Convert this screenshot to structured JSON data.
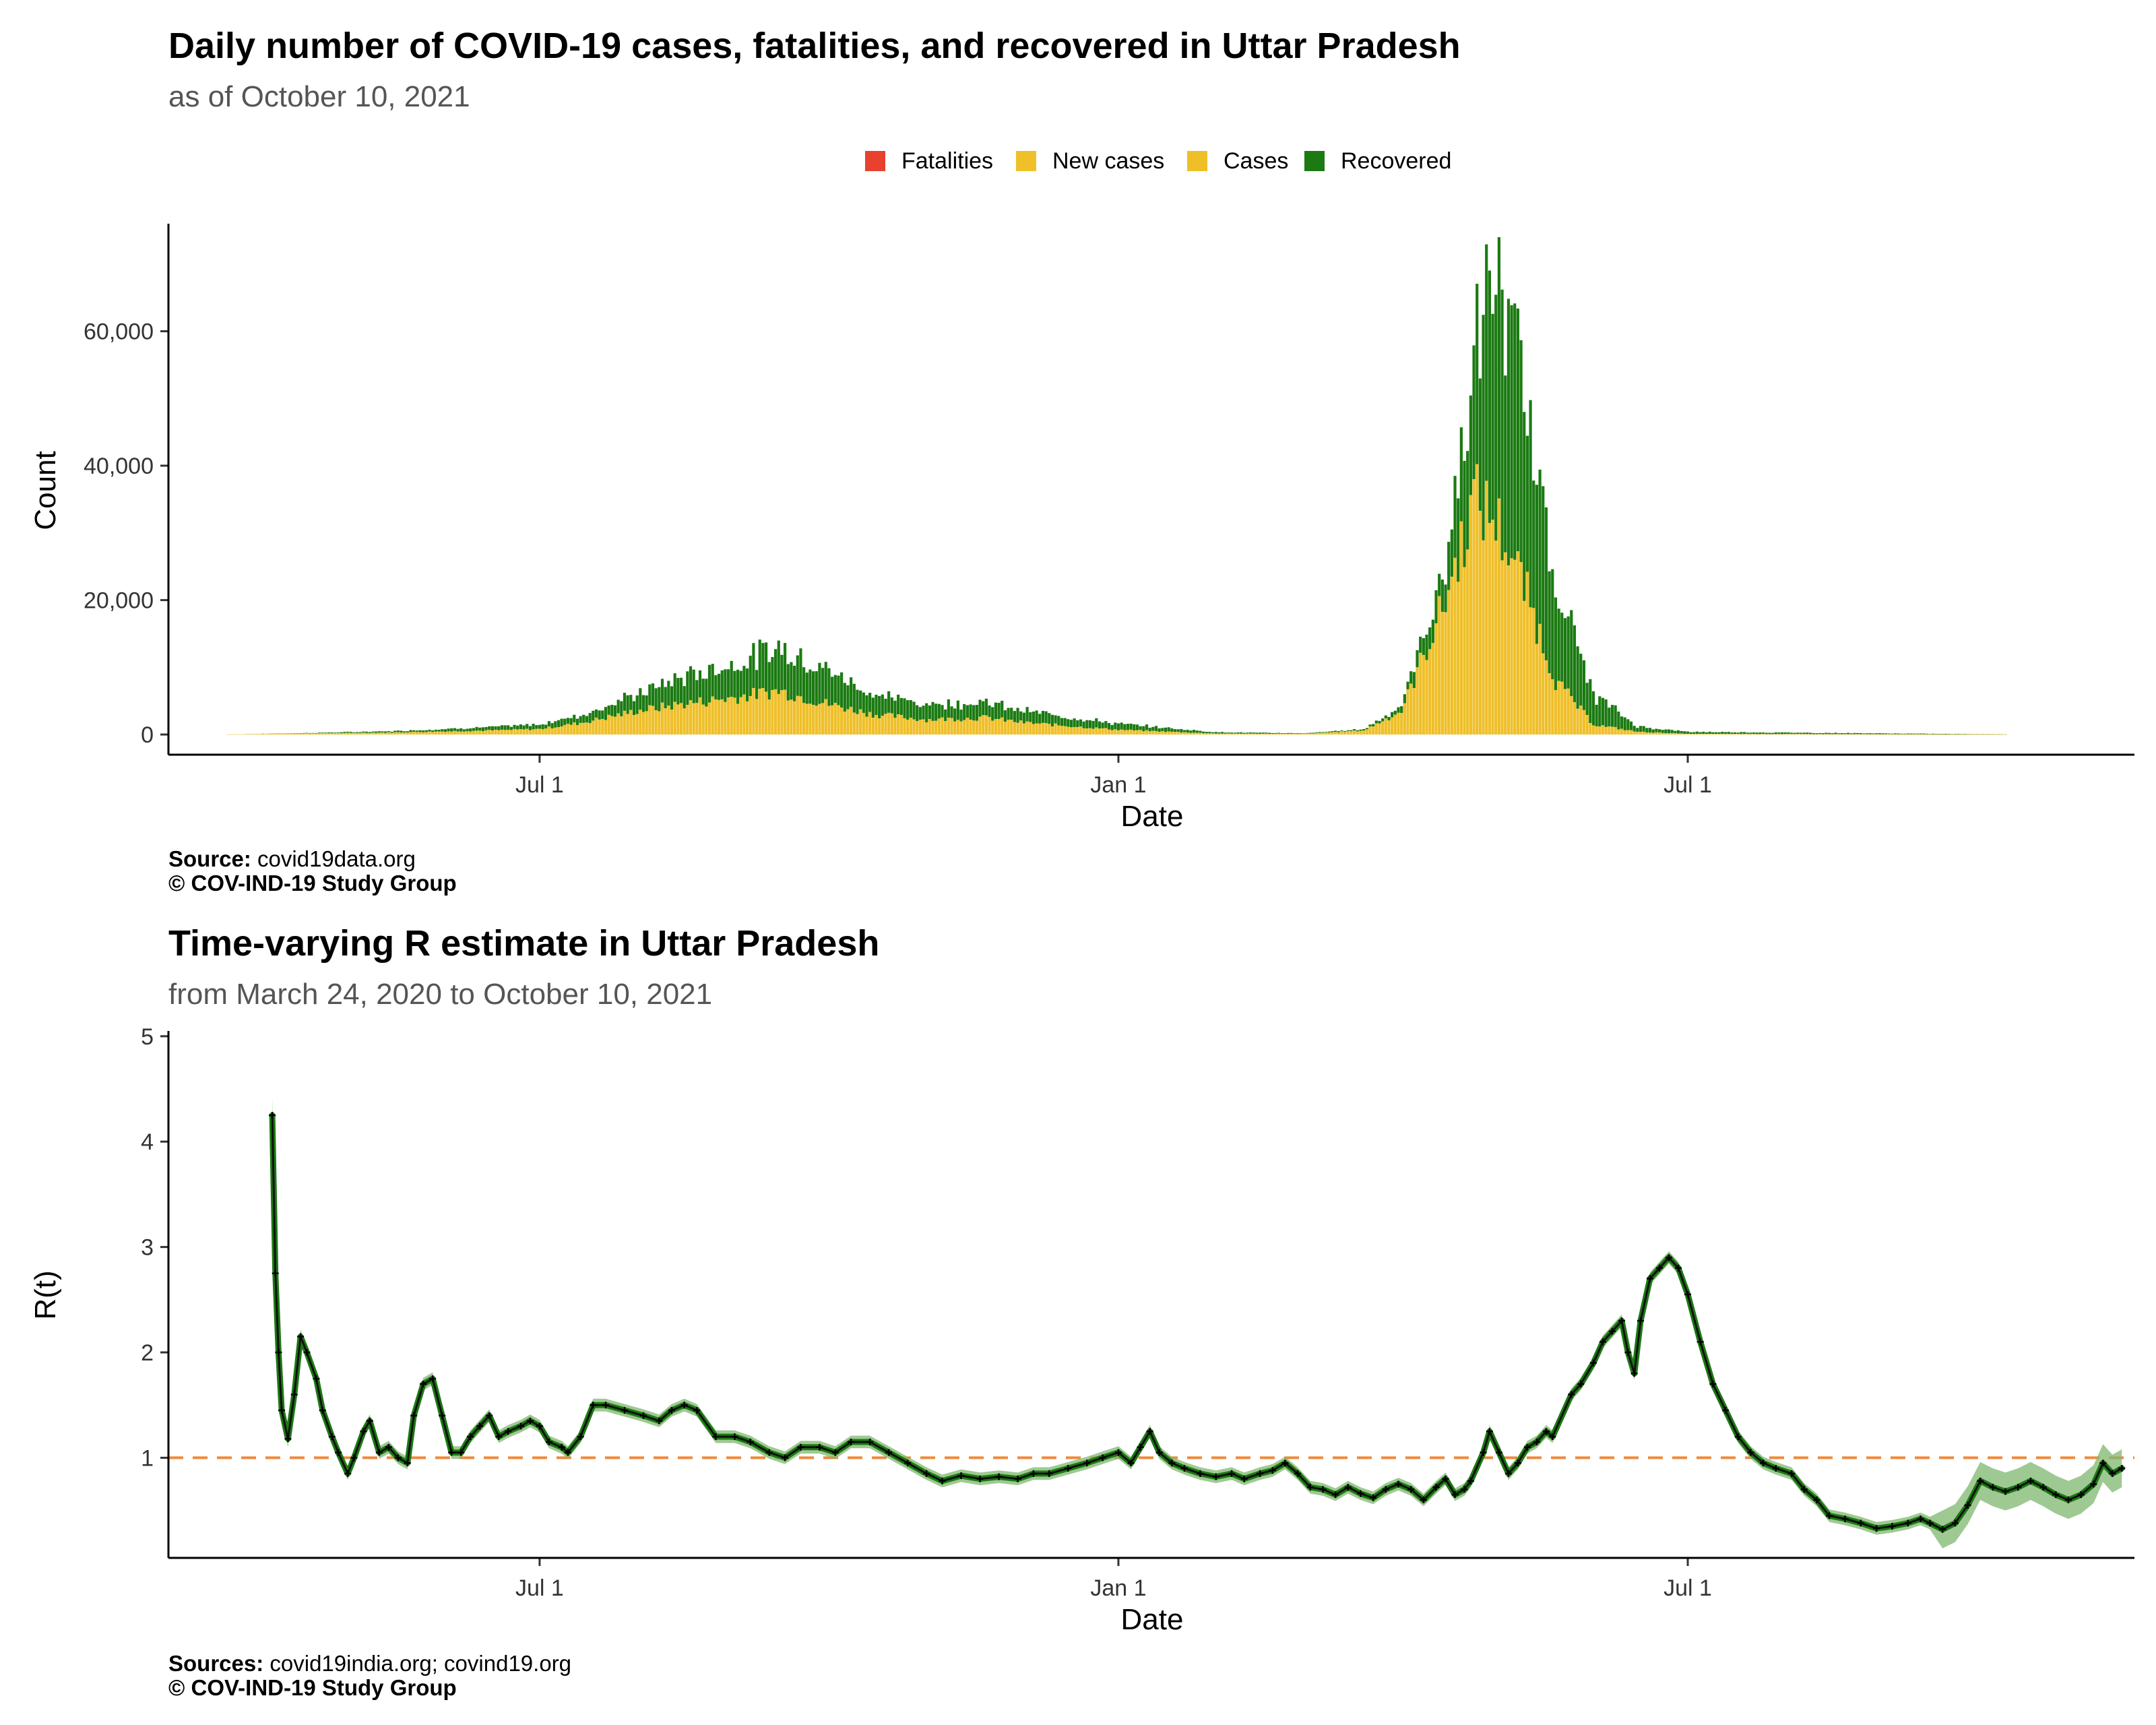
{
  "colors": {
    "fatalities": "#e8412e",
    "new_cases": "#f0c02a",
    "cases": "#efbf29",
    "recovered": "#1b7a12",
    "rt_line": "#1b7a12",
    "rt_band": "#7fb76f",
    "threshold": "#f08a3c",
    "subtitle": "#555555",
    "axis_text": "#333333"
  },
  "chart_data": [
    {
      "type": "bar",
      "title": "Daily number of COVID-19 cases, fatalities, and recovered in Uttar Pradesh",
      "subtitle": "as of October 10, 2021",
      "xlabel": "Date",
      "ylabel": "Count",
      "legend": {
        "placement": "top-right",
        "entries": [
          "Fatalities",
          "New cases",
          "Cases",
          "Recovered"
        ]
      },
      "x_tick_labels": [
        "Jul  1",
        "Jan  1",
        "Jul  1"
      ],
      "x_tick_dates": [
        "2020-07-01",
        "2021-01-01",
        "2021-07-01"
      ],
      "x_range": [
        "2020-03-05",
        "2021-11-20"
      ],
      "y_ticks": [
        0,
        20000,
        40000,
        60000
      ],
      "y_tick_labels": [
        "0",
        "20,000",
        "40,000",
        "60,000"
      ],
      "ylim": [
        -3000,
        76000
      ],
      "grid": false,
      "series_profile": [
        {
          "date": "2020-03-24",
          "cases": 20,
          "recovered": 0
        },
        {
          "date": "2020-04-15",
          "cases": 150,
          "recovered": 50
        },
        {
          "date": "2020-05-15",
          "cases": 300,
          "recovered": 200
        },
        {
          "date": "2020-06-15",
          "cases": 600,
          "recovered": 500
        },
        {
          "date": "2020-07-01",
          "cases": 800,
          "recovered": 700
        },
        {
          "date": "2020-07-15",
          "cases": 1800,
          "recovered": 1200
        },
        {
          "date": "2020-08-01",
          "cases": 3500,
          "recovered": 2500
        },
        {
          "date": "2020-08-15",
          "cases": 4500,
          "recovered": 4000
        },
        {
          "date": "2020-09-01",
          "cases": 5500,
          "recovered": 5000
        },
        {
          "date": "2020-09-15",
          "cases": 6500,
          "recovered": 6500
        },
        {
          "date": "2020-10-01",
          "cases": 4500,
          "recovered": 5000
        },
        {
          "date": "2020-10-15",
          "cases": 3000,
          "recovered": 3000
        },
        {
          "date": "2020-11-01",
          "cases": 2200,
          "recovered": 2300
        },
        {
          "date": "2020-11-20",
          "cases": 2500,
          "recovered": 2300
        },
        {
          "date": "2020-12-01",
          "cases": 1800,
          "recovered": 1800
        },
        {
          "date": "2021-01-01",
          "cases": 700,
          "recovered": 900
        },
        {
          "date": "2021-02-01",
          "cases": 150,
          "recovered": 200
        },
        {
          "date": "2021-03-01",
          "cases": 100,
          "recovered": 80
        },
        {
          "date": "2021-03-20",
          "cases": 600,
          "recovered": 200
        },
        {
          "date": "2021-04-01",
          "cases": 3500,
          "recovered": 800
        },
        {
          "date": "2021-04-15",
          "cases": 20000,
          "recovered": 5000
        },
        {
          "date": "2021-04-24",
          "cases": 35000,
          "recovered": 20000
        },
        {
          "date": "2021-05-01",
          "cases": 32000,
          "recovered": 38000
        },
        {
          "date": "2021-05-10",
          "cases": 22000,
          "recovered": 28000
        },
        {
          "date": "2021-05-20",
          "cases": 8000,
          "recovered": 15000
        },
        {
          "date": "2021-06-01",
          "cases": 1500,
          "recovered": 4500
        },
        {
          "date": "2021-06-15",
          "cases": 400,
          "recovered": 800
        },
        {
          "date": "2021-07-01",
          "cases": 100,
          "recovered": 300
        },
        {
          "date": "2021-10-10",
          "cases": 10,
          "recovered": 20
        }
      ]
    },
    {
      "type": "line",
      "title": "Time-varying R estimate in Uttar Pradesh",
      "subtitle": "from March 24, 2020 to October 10, 2021",
      "xlabel": "Date",
      "ylabel": "R(t)",
      "x_tick_labels": [
        "Jul  1",
        "Jan  1",
        "Jul  1"
      ],
      "x_tick_dates": [
        "2020-07-01",
        "2021-01-01",
        "2021-07-01"
      ],
      "x_range": [
        "2020-03-05",
        "2021-11-20"
      ],
      "y_ticks": [
        1,
        2,
        3,
        4,
        5
      ],
      "ylim": [
        0.05,
        5.05
      ],
      "threshold": 1,
      "grid": false,
      "points": [
        [
          "2020-04-07",
          4.25
        ],
        [
          "2020-04-08",
          2.75
        ],
        [
          "2020-04-09",
          2.0
        ],
        [
          "2020-04-10",
          1.45
        ],
        [
          "2020-04-12",
          1.18
        ],
        [
          "2020-04-14",
          1.6
        ],
        [
          "2020-04-16",
          2.15
        ],
        [
          "2020-04-18",
          2.0
        ],
        [
          "2020-04-21",
          1.75
        ],
        [
          "2020-04-23",
          1.45
        ],
        [
          "2020-04-26",
          1.2
        ],
        [
          "2020-04-28",
          1.05
        ],
        [
          "2020-05-01",
          0.85
        ],
        [
          "2020-05-03",
          1.0
        ],
        [
          "2020-05-06",
          1.25
        ],
        [
          "2020-05-08",
          1.35
        ],
        [
          "2020-05-11",
          1.05
        ],
        [
          "2020-05-14",
          1.1
        ],
        [
          "2020-05-17",
          1.0
        ],
        [
          "2020-05-20",
          0.95
        ],
        [
          "2020-05-22",
          1.4
        ],
        [
          "2020-05-25",
          1.7
        ],
        [
          "2020-05-28",
          1.75
        ],
        [
          "2020-05-31",
          1.4
        ],
        [
          "2020-06-03",
          1.05
        ],
        [
          "2020-06-06",
          1.05
        ],
        [
          "2020-06-09",
          1.2
        ],
        [
          "2020-06-12",
          1.3
        ],
        [
          "2020-06-15",
          1.4
        ],
        [
          "2020-06-18",
          1.2
        ],
        [
          "2020-06-21",
          1.25
        ],
        [
          "2020-06-25",
          1.3
        ],
        [
          "2020-06-28",
          1.35
        ],
        [
          "2020-07-01",
          1.3
        ],
        [
          "2020-07-04",
          1.15
        ],
        [
          "2020-07-08",
          1.1
        ],
        [
          "2020-07-10",
          1.05
        ],
        [
          "2020-07-14",
          1.2
        ],
        [
          "2020-07-18",
          1.5
        ],
        [
          "2020-07-22",
          1.5
        ],
        [
          "2020-07-28",
          1.45
        ],
        [
          "2020-08-03",
          1.4
        ],
        [
          "2020-08-08",
          1.35
        ],
        [
          "2020-08-12",
          1.45
        ],
        [
          "2020-08-16",
          1.5
        ],
        [
          "2020-08-20",
          1.45
        ],
        [
          "2020-08-26",
          1.2
        ],
        [
          "2020-09-01",
          1.2
        ],
        [
          "2020-09-06",
          1.15
        ],
        [
          "2020-09-12",
          1.05
        ],
        [
          "2020-09-17",
          1.0
        ],
        [
          "2020-09-22",
          1.1
        ],
        [
          "2020-09-28",
          1.1
        ],
        [
          "2020-10-03",
          1.05
        ],
        [
          "2020-10-08",
          1.15
        ],
        [
          "2020-10-14",
          1.15
        ],
        [
          "2020-10-20",
          1.05
        ],
        [
          "2020-10-26",
          0.95
        ],
        [
          "2020-11-01",
          0.85
        ],
        [
          "2020-11-06",
          0.78
        ],
        [
          "2020-11-12",
          0.83
        ],
        [
          "2020-11-18",
          0.8
        ],
        [
          "2020-11-24",
          0.82
        ],
        [
          "2020-11-30",
          0.8
        ],
        [
          "2020-12-05",
          0.85
        ],
        [
          "2020-12-10",
          0.85
        ],
        [
          "2020-12-16",
          0.9
        ],
        [
          "2020-12-22",
          0.95
        ],
        [
          "2020-12-27",
          1.0
        ],
        [
          "2021-01-01",
          1.05
        ],
        [
          "2021-01-05",
          0.95
        ],
        [
          "2021-01-08",
          1.1
        ],
        [
          "2021-01-11",
          1.25
        ],
        [
          "2021-01-14",
          1.05
        ],
        [
          "2021-01-18",
          0.95
        ],
        [
          "2021-01-22",
          0.9
        ],
        [
          "2021-01-27",
          0.85
        ],
        [
          "2021-02-01",
          0.82
        ],
        [
          "2021-02-06",
          0.85
        ],
        [
          "2021-02-10",
          0.8
        ],
        [
          "2021-02-15",
          0.85
        ],
        [
          "2021-02-19",
          0.88
        ],
        [
          "2021-02-23",
          0.95
        ],
        [
          "2021-02-27",
          0.85
        ],
        [
          "2021-03-03",
          0.72
        ],
        [
          "2021-03-07",
          0.7
        ],
        [
          "2021-03-11",
          0.65
        ],
        [
          "2021-03-15",
          0.72
        ],
        [
          "2021-03-19",
          0.66
        ],
        [
          "2021-03-23",
          0.62
        ],
        [
          "2021-03-27",
          0.7
        ],
        [
          "2021-03-31",
          0.75
        ],
        [
          "2021-04-04",
          0.7
        ],
        [
          "2021-04-08",
          0.6
        ],
        [
          "2021-04-12",
          0.72
        ],
        [
          "2021-04-15",
          0.8
        ],
        [
          "2021-04-18",
          0.65
        ],
        [
          "2021-04-21",
          0.7
        ],
        [
          "2021-04-23",
          0.78
        ],
        [
          "2021-04-27",
          1.05
        ],
        [
          "2021-04-29",
          1.25
        ],
        [
          "2021-05-02",
          1.05
        ],
        [
          "2021-05-05",
          0.85
        ],
        [
          "2021-05-08",
          0.95
        ],
        [
          "2021-05-11",
          1.1
        ],
        [
          "2021-05-14",
          1.15
        ],
        [
          "2021-05-17",
          1.25
        ],
        [
          "2021-05-19",
          1.2
        ],
        [
          "2021-05-25",
          1.6
        ],
        [
          "2021-05-28",
          1.7
        ],
        [
          "2021-06-01",
          1.9
        ],
        [
          "2021-06-04",
          2.1
        ],
        [
          "2021-06-07",
          2.2
        ],
        [
          "2021-06-10",
          2.3
        ],
        [
          "2021-06-12",
          2.0
        ],
        [
          "2021-06-14",
          1.8
        ],
        [
          "2021-06-16",
          2.3
        ],
        [
          "2021-06-19",
          2.7
        ],
        [
          "2021-06-22",
          2.8
        ],
        [
          "2021-06-25",
          2.9
        ],
        [
          "2021-06-28",
          2.8
        ],
        [
          "2021-07-01",
          2.55
        ],
        [
          "2021-07-05",
          2.1
        ],
        [
          "2021-07-09",
          1.7
        ],
        [
          "2021-07-13",
          1.45
        ],
        [
          "2021-07-17",
          1.2
        ],
        [
          "2021-07-21",
          1.05
        ],
        [
          "2021-07-25",
          0.95
        ],
        [
          "2021-07-29",
          0.9
        ],
        [
          "2021-08-03",
          0.85
        ],
        [
          "2021-08-07",
          0.7
        ],
        [
          "2021-08-11",
          0.6
        ],
        [
          "2021-08-15",
          0.45
        ],
        [
          "2021-08-20",
          0.42
        ],
        [
          "2021-08-25",
          0.38
        ],
        [
          "2021-08-30",
          0.33
        ],
        [
          "2021-09-04",
          0.35
        ],
        [
          "2021-09-09",
          0.38
        ],
        [
          "2021-09-13",
          0.42
        ],
        [
          "2021-09-16",
          0.38
        ],
        [
          "2021-09-20",
          0.32
        ],
        [
          "2021-09-24",
          0.38
        ],
        [
          "2021-09-28",
          0.55
        ],
        [
          "2021-10-02",
          0.78
        ],
        [
          "2021-10-06",
          0.72
        ],
        [
          "2021-10-10",
          0.68
        ],
        [
          "2021-10-14",
          0.72
        ],
        [
          "2021-10-18",
          0.78
        ],
        [
          "2021-10-22",
          0.72
        ],
        [
          "2021-10-26",
          0.65
        ],
        [
          "2021-10-30",
          0.6
        ],
        [
          "2021-11-03",
          0.65
        ],
        [
          "2021-11-07",
          0.75
        ],
        [
          "2021-11-10",
          0.95
        ],
        [
          "2021-11-13",
          0.85
        ],
        [
          "2021-11-16",
          0.9
        ]
      ]
    }
  ],
  "captions": {
    "chart1_source_label": "Source:",
    "chart1_source_value": " covid19data.org",
    "chart1_copyright": "© COV-IND-19 Study Group",
    "chart2_source_label": "Sources:",
    "chart2_source_value": " covid19india.org; covind19.org",
    "chart2_copyright": "© COV-IND-19 Study Group"
  }
}
